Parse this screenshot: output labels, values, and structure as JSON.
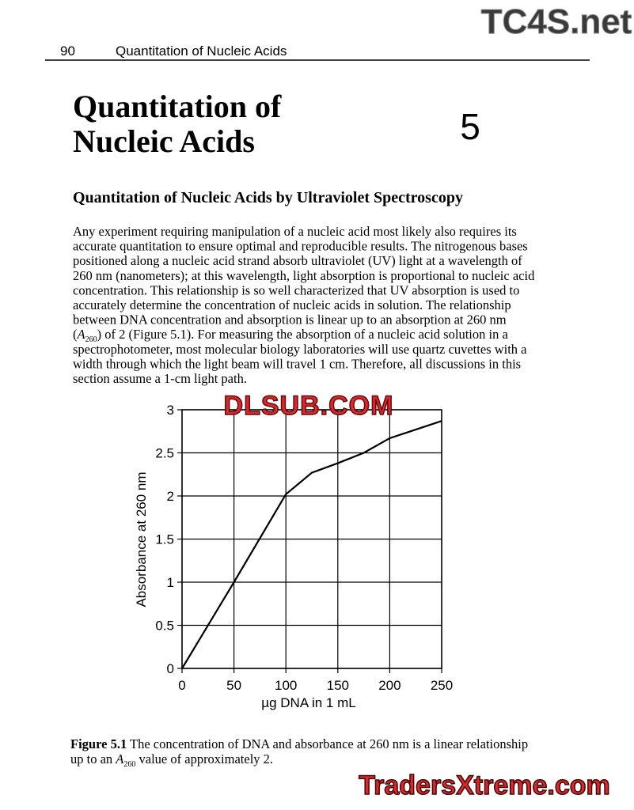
{
  "watermarks": {
    "top": "TC4S.net",
    "middle": "DLSUB.COM",
    "bottom": "TradersXtreme.com"
  },
  "header": {
    "page_number": "90",
    "running_title": "Quantitation of Nucleic Acids"
  },
  "chapter": {
    "title_lines": [
      "Quantitation of",
      "Nucleic Acids"
    ],
    "number": "5"
  },
  "section": {
    "heading": "Quantitation of Nucleic Acids by Ultraviolet Spectroscopy"
  },
  "paragraph": {
    "lines": [
      "Any experiment requiring manipulation of a nucleic acid most likely also requires its",
      "accurate quantitation to ensure optimal and reproducible results. The nitrogenous bases",
      "positioned along a nucleic acid strand absorb ultraviolet (UV) light at a wavelength of",
      "260 nm (nanometers); at this wavelength, light absorption is proportional to nucleic acid",
      "concentration. This relationship is so well characterized that UV absorption is used to",
      "accurately determine the concentration of nucleic acids in solution. The relationship",
      "between DNA concentration and absorption is linear up to an absorption at 260 nm",
      [
        "(",
        "A",
        "260",
        ") of 2 (Figure 5.1). For measuring the absorption of a nucleic acid solution in a"
      ],
      "spectrophotometer, most molecular biology laboratories will use quartz cuvettes with a",
      "width through which the light beam will travel 1 cm. Therefore, all discussions in this",
      "section assume a 1-cm light path."
    ]
  },
  "chart_data": {
    "type": "line",
    "x_label": "µg DNA in 1 mL",
    "y_label": "Absorbance at 260 nm",
    "x": [
      0,
      50,
      100,
      125,
      150,
      175,
      200,
      250
    ],
    "values": [
      0,
      1,
      2.02,
      2.27,
      2.38,
      2.5,
      2.67,
      2.87
    ],
    "color": "#000000",
    "xlim": [
      0,
      250
    ],
    "ylim": [
      0,
      3
    ],
    "xticks": [
      0,
      50,
      100,
      150,
      200,
      250
    ],
    "yticks": [
      0,
      0.5,
      1,
      1.5,
      2,
      2.5,
      3
    ],
    "grid": true
  },
  "caption": {
    "label": "Figure 5.1",
    "line1": " The concentration of DNA and absorbance at 260 nm is a linear relationship",
    "line2_start": "up to an ",
    "var": "A",
    "sub": "260",
    "line2_end": " value of approximately 2."
  }
}
